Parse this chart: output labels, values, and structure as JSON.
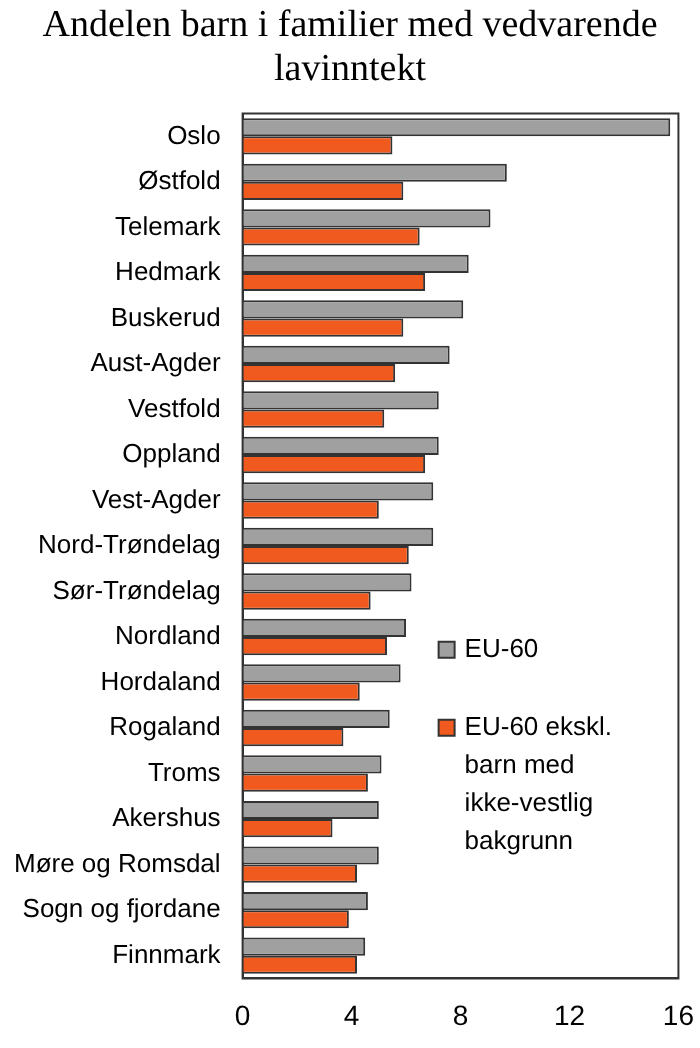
{
  "chart_data": {
    "type": "bar",
    "orientation": "horizontal",
    "title": "Andelen barn i familier med vedvarende lavinntekt",
    "categories": [
      "Oslo",
      "Østfold",
      "Telemark",
      "Hedmark",
      "Buskerud",
      "Aust-Agder",
      "Vestfold",
      "Oppland",
      "Vest-Agder",
      "Nord-Trøndelag",
      "Sør-Trøndelag",
      "Nordland",
      "Hordaland",
      "Rogaland",
      "Troms",
      "Akershus",
      "Møre og Romsdal",
      "Sogn og fjordane",
      "Finnmark"
    ],
    "series": [
      {
        "name": "EU-60",
        "color": "#a0a0a0",
        "values": [
          15.7,
          9.7,
          9.1,
          8.3,
          8.1,
          7.6,
          7.2,
          7.2,
          7.0,
          7.0,
          6.2,
          6.0,
          5.8,
          5.4,
          5.1,
          5.0,
          5.0,
          4.6,
          4.5
        ]
      },
      {
        "name": "EU-60 ekskl. barn med ikke-vestlig bakgrunn",
        "color": "#f05a1e",
        "values": [
          5.5,
          5.9,
          6.5,
          6.7,
          5.9,
          5.6,
          5.2,
          6.7,
          5.0,
          6.1,
          4.7,
          5.3,
          4.3,
          3.7,
          4.6,
          3.3,
          4.2,
          3.9,
          4.2
        ]
      }
    ],
    "xlim": [
      0,
      16
    ],
    "xticks": [
      0,
      4,
      8,
      12,
      16
    ],
    "grid": false,
    "legend": "right"
  }
}
